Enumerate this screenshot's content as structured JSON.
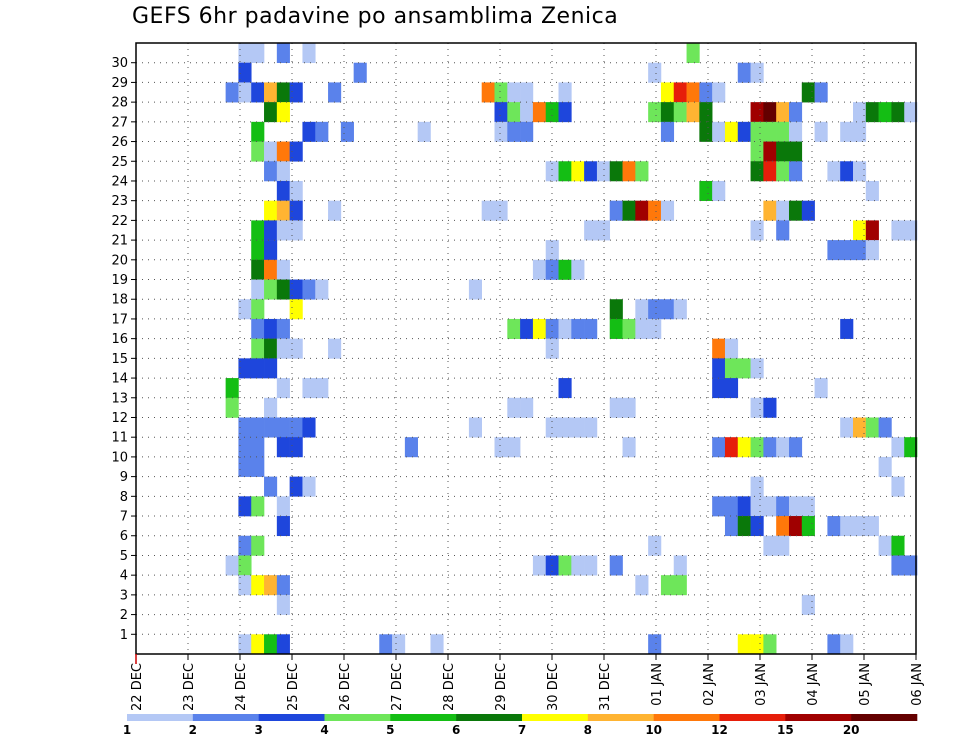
{
  "chart_data": {
    "type": "heatmap",
    "title": "GEFS 6hr padavine po ansamblima Zenica",
    "x_tick_labels": [
      "22 DEC",
      "23 DEC",
      "24 DEC",
      "25 DEC",
      "26 DEC",
      "27 DEC",
      "28 DEC",
      "29 DEC",
      "30 DEC",
      "31 DEC",
      "01 JAN",
      "02 JAN",
      "03 JAN",
      "04 JAN",
      "05 JAN",
      "06 JAN"
    ],
    "y_tick_labels": [
      "1",
      "2",
      "3",
      "4",
      "5",
      "6",
      "7",
      "8",
      "9",
      "10",
      "11",
      "12",
      "13",
      "14",
      "15",
      "16",
      "17",
      "18",
      "19",
      "20",
      "21",
      "22",
      "23",
      "24",
      "25",
      "26",
      "27",
      "28",
      "29",
      "30"
    ],
    "x_columns": 61,
    "y_rows": 31,
    "grid": true,
    "legend": {
      "placement": "bottom",
      "labels": [
        "1",
        "2",
        "3",
        "4",
        "5",
        "6",
        "7",
        "8",
        "10",
        "12",
        "15",
        "20"
      ],
      "colors": [
        "#b4c8f5",
        "#5a82eb",
        "#1e46dc",
        "#6ee65a",
        "#14be14",
        "#0a780a",
        "#ffff00",
        "#ffb432",
        "#ff780a",
        "#e61e0a",
        "#a00000",
        "#640000"
      ]
    },
    "cells_format": "[row, column, color_class] with row 0 = bottom row, color_class 1..12 maps to legend colors",
    "cells": [
      [
        30,
        8,
        1
      ],
      [
        30,
        9,
        1
      ],
      [
        30,
        11,
        2
      ],
      [
        30,
        13,
        1
      ],
      [
        30,
        43,
        4
      ],
      [
        29,
        8,
        3
      ],
      [
        29,
        17,
        2
      ],
      [
        29,
        40,
        1
      ],
      [
        29,
        47,
        2
      ],
      [
        29,
        48,
        1
      ],
      [
        28,
        7,
        2
      ],
      [
        28,
        8,
        1
      ],
      [
        28,
        9,
        3
      ],
      [
        28,
        10,
        8
      ],
      [
        28,
        11,
        6
      ],
      [
        28,
        12,
        3
      ],
      [
        28,
        15,
        2
      ],
      [
        28,
        27,
        9
      ],
      [
        28,
        28,
        4
      ],
      [
        28,
        29,
        1
      ],
      [
        28,
        30,
        1
      ],
      [
        28,
        33,
        1
      ],
      [
        28,
        41,
        7
      ],
      [
        28,
        42,
        10
      ],
      [
        28,
        43,
        9
      ],
      [
        28,
        44,
        2
      ],
      [
        28,
        45,
        1
      ],
      [
        28,
        52,
        6
      ],
      [
        28,
        53,
        2
      ],
      [
        27,
        10,
        6
      ],
      [
        27,
        11,
        7
      ],
      [
        27,
        28,
        3
      ],
      [
        27,
        29,
        4
      ],
      [
        27,
        30,
        1
      ],
      [
        27,
        31,
        9
      ],
      [
        27,
        32,
        5
      ],
      [
        27,
        33,
        3
      ],
      [
        27,
        40,
        4
      ],
      [
        27,
        41,
        6
      ],
      [
        27,
        42,
        4
      ],
      [
        27,
        43,
        8
      ],
      [
        27,
        44,
        6
      ],
      [
        27,
        48,
        11
      ],
      [
        27,
        49,
        12
      ],
      [
        27,
        50,
        8
      ],
      [
        27,
        51,
        2
      ],
      [
        27,
        56,
        1
      ],
      [
        27,
        57,
        6
      ],
      [
        27,
        58,
        5
      ],
      [
        27,
        59,
        6
      ],
      [
        27,
        60,
        1
      ],
      [
        26,
        9,
        5
      ],
      [
        26,
        13,
        3
      ],
      [
        26,
        14,
        2
      ],
      [
        26,
        16,
        2
      ],
      [
        26,
        22,
        1
      ],
      [
        26,
        28,
        1
      ],
      [
        26,
        29,
        2
      ],
      [
        26,
        30,
        2
      ],
      [
        26,
        41,
        2
      ],
      [
        26,
        44,
        6
      ],
      [
        26,
        45,
        1
      ],
      [
        26,
        46,
        7
      ],
      [
        26,
        47,
        3
      ],
      [
        26,
        48,
        4
      ],
      [
        26,
        49,
        4
      ],
      [
        26,
        50,
        4
      ],
      [
        26,
        51,
        1
      ],
      [
        26,
        53,
        1
      ],
      [
        26,
        55,
        1
      ],
      [
        26,
        56,
        1
      ],
      [
        25,
        9,
        4
      ],
      [
        25,
        10,
        1
      ],
      [
        25,
        11,
        9
      ],
      [
        25,
        12,
        3
      ],
      [
        25,
        48,
        4
      ],
      [
        25,
        49,
        11
      ],
      [
        25,
        50,
        6
      ],
      [
        25,
        51,
        6
      ],
      [
        24,
        10,
        2
      ],
      [
        24,
        11,
        1
      ],
      [
        24,
        32,
        1
      ],
      [
        24,
        33,
        5
      ],
      [
        24,
        34,
        7
      ],
      [
        24,
        35,
        3
      ],
      [
        24,
        36,
        1
      ],
      [
        24,
        37,
        6
      ],
      [
        24,
        38,
        9
      ],
      [
        24,
        39,
        4
      ],
      [
        24,
        48,
        6
      ],
      [
        24,
        49,
        10
      ],
      [
        24,
        50,
        4
      ],
      [
        24,
        51,
        2
      ],
      [
        24,
        54,
        1
      ],
      [
        24,
        55,
        3
      ],
      [
        24,
        56,
        1
      ],
      [
        23,
        11,
        3
      ],
      [
        23,
        12,
        1
      ],
      [
        23,
        44,
        5
      ],
      [
        23,
        45,
        1
      ],
      [
        23,
        57,
        1
      ],
      [
        22,
        10,
        7
      ],
      [
        22,
        11,
        8
      ],
      [
        22,
        12,
        3
      ],
      [
        22,
        15,
        1
      ],
      [
        22,
        27,
        1
      ],
      [
        22,
        28,
        1
      ],
      [
        22,
        37,
        2
      ],
      [
        22,
        38,
        6
      ],
      [
        22,
        39,
        11
      ],
      [
        22,
        40,
        9
      ],
      [
        22,
        41,
        1
      ],
      [
        22,
        49,
        8
      ],
      [
        22,
        50,
        1
      ],
      [
        22,
        51,
        6
      ],
      [
        22,
        52,
        3
      ],
      [
        21,
        9,
        5
      ],
      [
        21,
        10,
        3
      ],
      [
        21,
        11,
        1
      ],
      [
        21,
        12,
        1
      ],
      [
        21,
        35,
        1
      ],
      [
        21,
        36,
        1
      ],
      [
        21,
        48,
        1
      ],
      [
        21,
        50,
        2
      ],
      [
        21,
        56,
        7
      ],
      [
        21,
        57,
        11
      ],
      [
        21,
        59,
        1
      ],
      [
        21,
        60,
        1
      ],
      [
        20,
        9,
        5
      ],
      [
        20,
        10,
        3
      ],
      [
        20,
        32,
        1
      ],
      [
        20,
        54,
        2
      ],
      [
        20,
        55,
        2
      ],
      [
        20,
        56,
        2
      ],
      [
        20,
        57,
        1
      ],
      [
        19,
        9,
        6
      ],
      [
        19,
        10,
        9
      ],
      [
        19,
        11,
        1
      ],
      [
        19,
        31,
        1
      ],
      [
        19,
        32,
        2
      ],
      [
        19,
        33,
        5
      ],
      [
        19,
        34,
        1
      ],
      [
        18,
        9,
        1
      ],
      [
        18,
        10,
        4
      ],
      [
        18,
        11,
        6
      ],
      [
        18,
        12,
        3
      ],
      [
        18,
        13,
        2
      ],
      [
        18,
        14,
        1
      ],
      [
        18,
        26,
        1
      ],
      [
        17,
        8,
        1
      ],
      [
        17,
        9,
        4
      ],
      [
        17,
        12,
        7
      ],
      [
        17,
        37,
        6
      ],
      [
        17,
        39,
        1
      ],
      [
        17,
        40,
        2
      ],
      [
        17,
        41,
        2
      ],
      [
        17,
        42,
        1
      ],
      [
        16,
        9,
        2
      ],
      [
        16,
        10,
        3
      ],
      [
        16,
        11,
        2
      ],
      [
        16,
        29,
        4
      ],
      [
        16,
        30,
        3
      ],
      [
        16,
        31,
        7
      ],
      [
        16,
        32,
        2
      ],
      [
        16,
        33,
        1
      ],
      [
        16,
        34,
        2
      ],
      [
        16,
        35,
        2
      ],
      [
        16,
        37,
        5
      ],
      [
        16,
        38,
        4
      ],
      [
        16,
        39,
        1
      ],
      [
        16,
        40,
        1
      ],
      [
        16,
        55,
        3
      ],
      [
        15,
        9,
        4
      ],
      [
        15,
        10,
        6
      ],
      [
        15,
        11,
        1
      ],
      [
        15,
        12,
        1
      ],
      [
        15,
        15,
        1
      ],
      [
        15,
        32,
        1
      ],
      [
        15,
        45,
        9
      ],
      [
        15,
        46,
        1
      ],
      [
        14,
        8,
        3
      ],
      [
        14,
        9,
        3
      ],
      [
        14,
        10,
        3
      ],
      [
        14,
        45,
        3
      ],
      [
        14,
        46,
        4
      ],
      [
        14,
        47,
        4
      ],
      [
        14,
        48,
        1
      ],
      [
        13,
        7,
        5
      ],
      [
        13,
        11,
        1
      ],
      [
        13,
        13,
        1
      ],
      [
        13,
        14,
        1
      ],
      [
        13,
        33,
        3
      ],
      [
        13,
        45,
        3
      ],
      [
        13,
        46,
        3
      ],
      [
        13,
        53,
        1
      ],
      [
        12,
        7,
        4
      ],
      [
        12,
        10,
        1
      ],
      [
        12,
        29,
        1
      ],
      [
        12,
        30,
        1
      ],
      [
        12,
        37,
        1
      ],
      [
        12,
        38,
        1
      ],
      [
        12,
        48,
        1
      ],
      [
        12,
        49,
        3
      ],
      [
        11,
        8,
        2
      ],
      [
        11,
        9,
        2
      ],
      [
        11,
        10,
        2
      ],
      [
        11,
        11,
        2
      ],
      [
        11,
        12,
        2
      ],
      [
        11,
        13,
        3
      ],
      [
        11,
        26,
        1
      ],
      [
        11,
        32,
        1
      ],
      [
        11,
        33,
        1
      ],
      [
        11,
        34,
        1
      ],
      [
        11,
        35,
        1
      ],
      [
        11,
        55,
        1
      ],
      [
        11,
        56,
        8
      ],
      [
        11,
        57,
        4
      ],
      [
        11,
        58,
        2
      ],
      [
        10,
        8,
        2
      ],
      [
        10,
        9,
        2
      ],
      [
        10,
        11,
        3
      ],
      [
        10,
        12,
        3
      ],
      [
        10,
        21,
        2
      ],
      [
        10,
        28,
        1
      ],
      [
        10,
        29,
        1
      ],
      [
        10,
        38,
        1
      ],
      [
        10,
        45,
        2
      ],
      [
        10,
        46,
        10
      ],
      [
        10,
        47,
        7
      ],
      [
        10,
        48,
        4
      ],
      [
        10,
        49,
        2
      ],
      [
        10,
        50,
        1
      ],
      [
        10,
        51,
        2
      ],
      [
        10,
        59,
        1
      ],
      [
        10,
        60,
        5
      ],
      [
        9,
        8,
        2
      ],
      [
        9,
        9,
        2
      ],
      [
        9,
        58,
        1
      ],
      [
        8,
        10,
        2
      ],
      [
        8,
        12,
        3
      ],
      [
        8,
        13,
        1
      ],
      [
        8,
        48,
        1
      ],
      [
        8,
        59,
        1
      ],
      [
        7,
        8,
        3
      ],
      [
        7,
        9,
        4
      ],
      [
        7,
        11,
        1
      ],
      [
        7,
        45,
        2
      ],
      [
        7,
        46,
        2
      ],
      [
        7,
        47,
        3
      ],
      [
        7,
        48,
        1
      ],
      [
        7,
        49,
        1
      ],
      [
        7,
        50,
        2
      ],
      [
        7,
        51,
        1
      ],
      [
        7,
        52,
        1
      ],
      [
        6,
        11,
        3
      ],
      [
        6,
        46,
        2
      ],
      [
        6,
        47,
        6
      ],
      [
        6,
        48,
        3
      ],
      [
        6,
        50,
        9
      ],
      [
        6,
        51,
        11
      ],
      [
        6,
        52,
        5
      ],
      [
        6,
        54,
        2
      ],
      [
        6,
        55,
        1
      ],
      [
        6,
        56,
        1
      ],
      [
        6,
        57,
        1
      ],
      [
        5,
        8,
        2
      ],
      [
        5,
        9,
        4
      ],
      [
        5,
        40,
        1
      ],
      [
        5,
        49,
        1
      ],
      [
        5,
        50,
        1
      ],
      [
        5,
        58,
        1
      ],
      [
        5,
        59,
        5
      ],
      [
        4,
        7,
        1
      ],
      [
        4,
        8,
        4
      ],
      [
        4,
        31,
        1
      ],
      [
        4,
        32,
        3
      ],
      [
        4,
        33,
        4
      ],
      [
        4,
        34,
        1
      ],
      [
        4,
        35,
        1
      ],
      [
        4,
        37,
        2
      ],
      [
        4,
        42,
        1
      ],
      [
        4,
        59,
        2
      ],
      [
        4,
        60,
        2
      ],
      [
        3,
        8,
        1
      ],
      [
        3,
        9,
        7
      ],
      [
        3,
        10,
        8
      ],
      [
        3,
        11,
        2
      ],
      [
        3,
        39,
        1
      ],
      [
        3,
        41,
        4
      ],
      [
        3,
        42,
        4
      ],
      [
        2,
        11,
        1
      ],
      [
        2,
        52,
        1
      ],
      [
        0,
        8,
        1
      ],
      [
        0,
        9,
        7
      ],
      [
        0,
        10,
        5
      ],
      [
        0,
        11,
        3
      ],
      [
        0,
        19,
        2
      ],
      [
        0,
        20,
        1
      ],
      [
        0,
        23,
        1
      ],
      [
        0,
        40,
        2
      ],
      [
        0,
        47,
        7
      ],
      [
        0,
        48,
        7
      ],
      [
        0,
        49,
        4
      ],
      [
        0,
        54,
        2
      ],
      [
        0,
        55,
        1
      ]
    ]
  }
}
